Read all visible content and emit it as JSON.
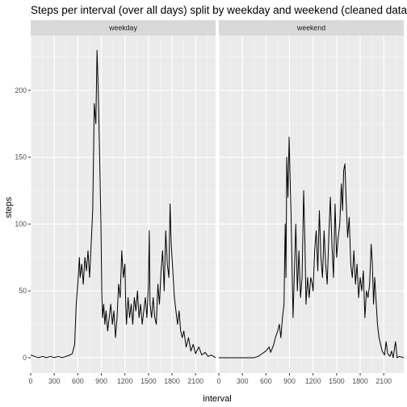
{
  "chart_data": {
    "type": "line",
    "title": "Steps per interval (over all days) split by weekday and weekend (cleaned data se",
    "xlabel": "interval",
    "ylabel": "steps",
    "xlim": [
      0,
      2355
    ],
    "ylim": [
      -11.5,
      241
    ],
    "x_ticks": [
      0,
      300,
      600,
      900,
      1200,
      1500,
      1800,
      2100
    ],
    "y_ticks": [
      0,
      50,
      100,
      150,
      200
    ],
    "grid": true,
    "colors": {
      "panel_bg": "#ebebeb",
      "grid_major": "#ffffff",
      "strip_bg": "#d9d9d9",
      "line": "#000000",
      "tick": "#333333"
    },
    "facets": [
      {
        "strip_label": "weekday",
        "points": [
          [
            0,
            2
          ],
          [
            50,
            1
          ],
          [
            100,
            0
          ],
          [
            150,
            1
          ],
          [
            200,
            0
          ],
          [
            250,
            1
          ],
          [
            300,
            0
          ],
          [
            350,
            1
          ],
          [
            400,
            0
          ],
          [
            450,
            1
          ],
          [
            500,
            2
          ],
          [
            530,
            3
          ],
          [
            560,
            10
          ],
          [
            580,
            40
          ],
          [
            600,
            55
          ],
          [
            620,
            75
          ],
          [
            630,
            60
          ],
          [
            650,
            70
          ],
          [
            670,
            55
          ],
          [
            690,
            75
          ],
          [
            710,
            65
          ],
          [
            730,
            80
          ],
          [
            750,
            60
          ],
          [
            770,
            85
          ],
          [
            790,
            110
          ],
          [
            810,
            190
          ],
          [
            830,
            175
          ],
          [
            845,
            230
          ],
          [
            860,
            200
          ],
          [
            875,
            160
          ],
          [
            885,
            130
          ],
          [
            895,
            100
          ],
          [
            905,
            50
          ],
          [
            915,
            30
          ],
          [
            930,
            40
          ],
          [
            945,
            25
          ],
          [
            960,
            35
          ],
          [
            980,
            20
          ],
          [
            1000,
            30
          ],
          [
            1020,
            40
          ],
          [
            1040,
            25
          ],
          [
            1060,
            35
          ],
          [
            1080,
            15
          ],
          [
            1100,
            30
          ],
          [
            1120,
            55
          ],
          [
            1140,
            45
          ],
          [
            1160,
            80
          ],
          [
            1180,
            60
          ],
          [
            1200,
            70
          ],
          [
            1210,
            40
          ],
          [
            1220,
            25
          ],
          [
            1240,
            45
          ],
          [
            1260,
            30
          ],
          [
            1280,
            40
          ],
          [
            1300,
            25
          ],
          [
            1320,
            45
          ],
          [
            1340,
            35
          ],
          [
            1360,
            50
          ],
          [
            1380,
            30
          ],
          [
            1400,
            40
          ],
          [
            1420,
            25
          ],
          [
            1440,
            35
          ],
          [
            1460,
            45
          ],
          [
            1480,
            30
          ],
          [
            1500,
            55
          ],
          [
            1510,
            95
          ],
          [
            1520,
            40
          ],
          [
            1540,
            30
          ],
          [
            1560,
            45
          ],
          [
            1580,
            30
          ],
          [
            1600,
            25
          ],
          [
            1620,
            55
          ],
          [
            1640,
            40
          ],
          [
            1660,
            65
          ],
          [
            1680,
            80
          ],
          [
            1700,
            50
          ],
          [
            1720,
            95
          ],
          [
            1740,
            70
          ],
          [
            1760,
            60
          ],
          [
            1775,
            115
          ],
          [
            1790,
            85
          ],
          [
            1810,
            65
          ],
          [
            1830,
            45
          ],
          [
            1850,
            35
          ],
          [
            1870,
            25
          ],
          [
            1890,
            35
          ],
          [
            1910,
            20
          ],
          [
            1930,
            15
          ],
          [
            1950,
            20
          ],
          [
            1980,
            8
          ],
          [
            2010,
            15
          ],
          [
            2040,
            5
          ],
          [
            2070,
            10
          ],
          [
            2100,
            3
          ],
          [
            2140,
            8
          ],
          [
            2180,
            2
          ],
          [
            2220,
            4
          ],
          [
            2260,
            1
          ],
          [
            2300,
            2
          ],
          [
            2355,
            0
          ]
        ]
      },
      {
        "strip_label": "weekend",
        "points": [
          [
            0,
            0
          ],
          [
            50,
            0
          ],
          [
            100,
            0
          ],
          [
            150,
            0
          ],
          [
            200,
            0
          ],
          [
            250,
            0
          ],
          [
            300,
            0
          ],
          [
            350,
            0
          ],
          [
            400,
            0
          ],
          [
            450,
            0
          ],
          [
            500,
            1
          ],
          [
            550,
            3
          ],
          [
            600,
            5
          ],
          [
            640,
            8
          ],
          [
            660,
            4
          ],
          [
            700,
            10
          ],
          [
            720,
            15
          ],
          [
            750,
            20
          ],
          [
            770,
            25
          ],
          [
            790,
            15
          ],
          [
            810,
            30
          ],
          [
            830,
            40
          ],
          [
            845,
            100
          ],
          [
            855,
            60
          ],
          [
            865,
            150
          ],
          [
            880,
            120
          ],
          [
            895,
            165
          ],
          [
            905,
            140
          ],
          [
            920,
            105
          ],
          [
            930,
            75
          ],
          [
            945,
            30
          ],
          [
            960,
            60
          ],
          [
            980,
            100
          ],
          [
            1000,
            50
          ],
          [
            1020,
            80
          ],
          [
            1040,
            45
          ],
          [
            1060,
            60
          ],
          [
            1080,
            125
          ],
          [
            1095,
            90
          ],
          [
            1110,
            40
          ],
          [
            1130,
            60
          ],
          [
            1150,
            45
          ],
          [
            1170,
            60
          ],
          [
            1190,
            55
          ],
          [
            1200,
            50
          ],
          [
            1220,
            80
          ],
          [
            1240,
            95
          ],
          [
            1260,
            65
          ],
          [
            1280,
            110
          ],
          [
            1300,
            75
          ],
          [
            1320,
            60
          ],
          [
            1340,
            95
          ],
          [
            1360,
            70
          ],
          [
            1380,
            55
          ],
          [
            1400,
            90
          ],
          [
            1420,
            120
          ],
          [
            1440,
            85
          ],
          [
            1460,
            60
          ],
          [
            1480,
            115
          ],
          [
            1500,
            75
          ],
          [
            1520,
            90
          ],
          [
            1540,
            100
          ],
          [
            1560,
            130
          ],
          [
            1575,
            110
          ],
          [
            1590,
            140
          ],
          [
            1605,
            145
          ],
          [
            1620,
            120
          ],
          [
            1640,
            90
          ],
          [
            1660,
            105
          ],
          [
            1680,
            70
          ],
          [
            1700,
            60
          ],
          [
            1720,
            80
          ],
          [
            1740,
            55
          ],
          [
            1760,
            70
          ],
          [
            1780,
            45
          ],
          [
            1800,
            60
          ],
          [
            1820,
            50
          ],
          [
            1840,
            65
          ],
          [
            1860,
            30
          ],
          [
            1880,
            50
          ],
          [
            1900,
            45
          ],
          [
            1920,
            55
          ],
          [
            1940,
            85
          ],
          [
            1955,
            70
          ],
          [
            1970,
            40
          ],
          [
            1985,
            60
          ],
          [
            2000,
            45
          ],
          [
            2020,
            25
          ],
          [
            2040,
            15
          ],
          [
            2060,
            10
          ],
          [
            2080,
            5
          ],
          [
            2110,
            2
          ],
          [
            2130,
            12
          ],
          [
            2150,
            3
          ],
          [
            2180,
            1
          ],
          [
            2200,
            5
          ],
          [
            2220,
            0
          ],
          [
            2250,
            12
          ],
          [
            2270,
            0
          ],
          [
            2300,
            1
          ],
          [
            2355,
            0
          ]
        ]
      }
    ]
  }
}
